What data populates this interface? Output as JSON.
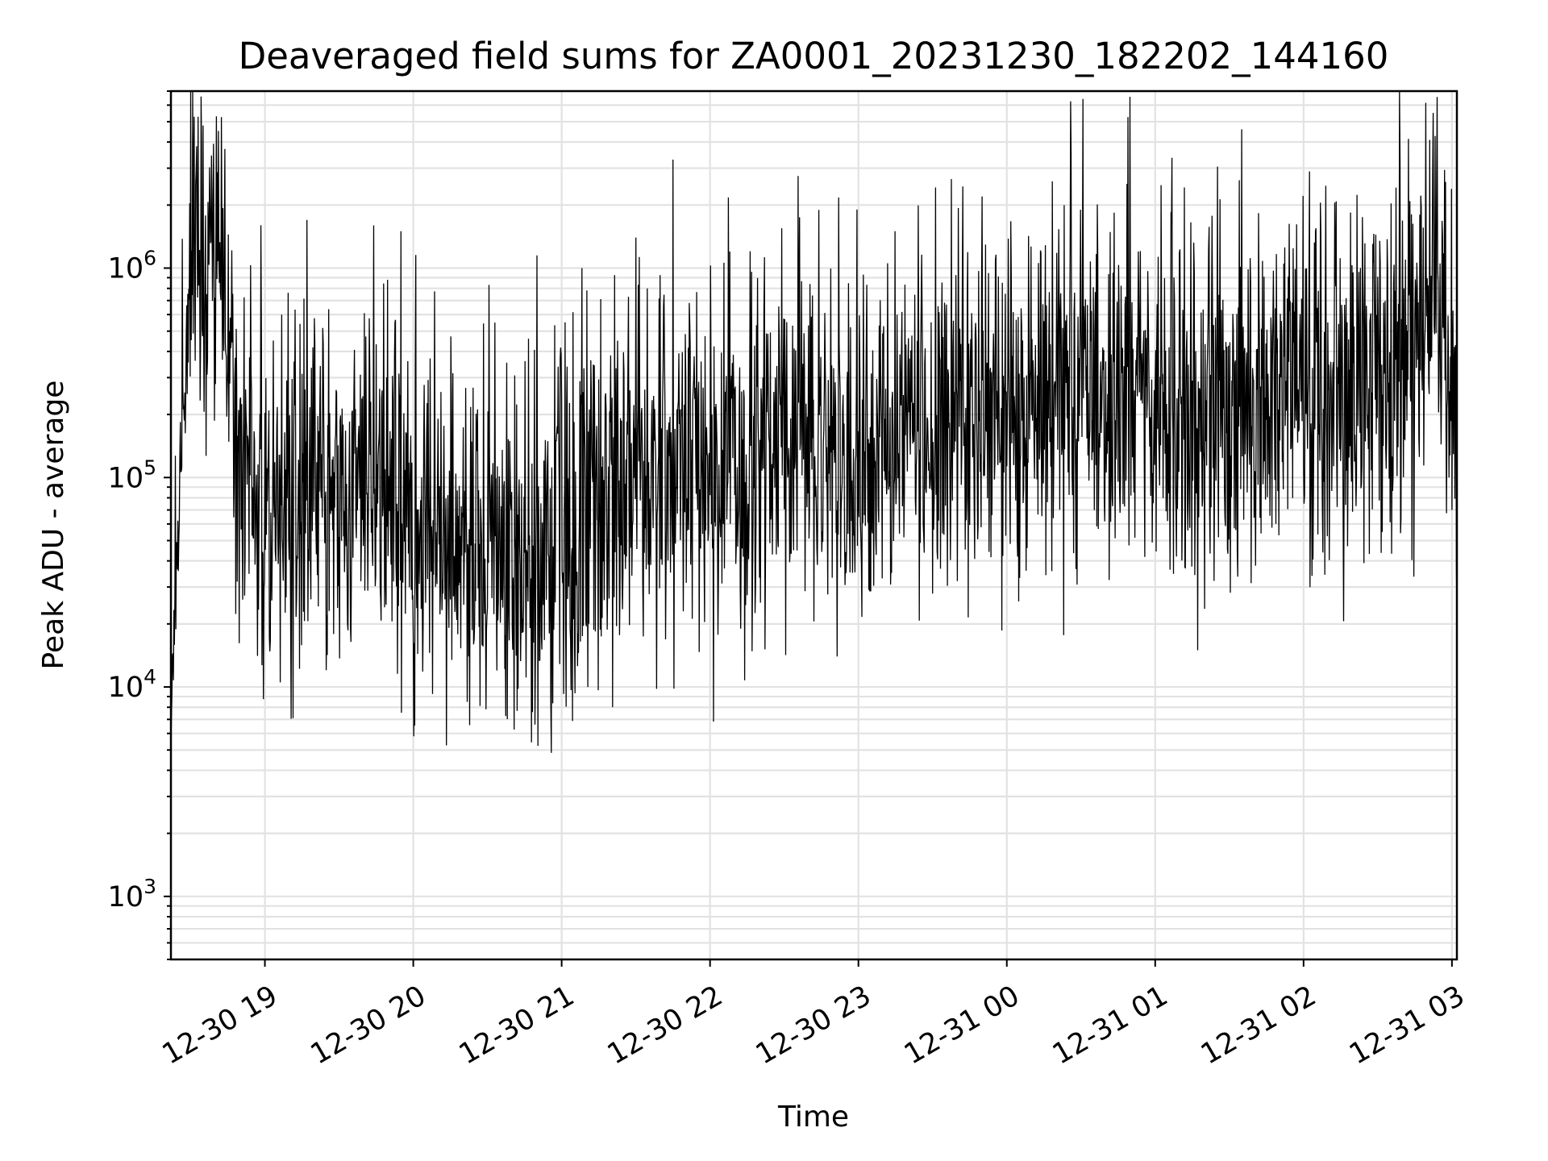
{
  "chart_data": {
    "type": "line",
    "title": "Deaveraged field sums for ZA0001_20231230_182202_144160",
    "xlabel": "Time",
    "ylabel": "Peak ADU - average",
    "yscale": "log",
    "ylim": [
      500,
      7000000
    ],
    "xlim": [
      "2023-12-30 18:22",
      "2023-12-31 03:02"
    ],
    "grid": true,
    "x_ticks": [
      {
        "label": "12-30 19",
        "value": "2023-12-30 19:00"
      },
      {
        "label": "12-30 20",
        "value": "2023-12-30 20:00"
      },
      {
        "label": "12-30 21",
        "value": "2023-12-30 21:00"
      },
      {
        "label": "12-30 22",
        "value": "2023-12-30 22:00"
      },
      {
        "label": "12-30 23",
        "value": "2023-12-30 23:00"
      },
      {
        "label": "12-31 00",
        "value": "2023-12-31 00:00"
      },
      {
        "label": "12-31 01",
        "value": "2023-12-31 01:00"
      },
      {
        "label": "12-31 02",
        "value": "2023-12-31 02:00"
      },
      {
        "label": "12-31 03",
        "value": "2023-12-31 03:00"
      }
    ],
    "y_ticks": [
      {
        "base": "10",
        "exp": "3",
        "value": 1000
      },
      {
        "base": "10",
        "exp": "4",
        "value": 10000
      },
      {
        "base": "10",
        "exp": "5",
        "value": 100000
      },
      {
        "base": "10",
        "exp": "6",
        "value": 1000000
      }
    ],
    "series": [
      {
        "color": "#000000",
        "x": [
          "2023-12-30 18:22",
          "2023-12-30 18:23",
          "2023-12-30 18:25",
          "2023-12-30 18:27",
          "2023-12-30 18:30",
          "2023-12-30 18:33",
          "2023-12-30 18:36",
          "2023-12-30 18:40",
          "2023-12-30 18:45",
          "2023-12-30 18:50",
          "2023-12-30 18:55",
          "2023-12-30 19:00",
          "2023-12-30 19:05",
          "2023-12-30 19:10",
          "2023-12-30 19:15",
          "2023-12-30 19:20",
          "2023-12-30 19:25",
          "2023-12-30 19:30",
          "2023-12-30 19:40",
          "2023-12-30 19:50",
          "2023-12-30 20:00",
          "2023-12-30 20:10",
          "2023-12-30 20:20",
          "2023-12-30 20:30",
          "2023-12-30 20:40",
          "2023-12-30 20:50",
          "2023-12-30 21:00",
          "2023-12-30 21:10",
          "2023-12-30 21:20",
          "2023-12-30 21:30",
          "2023-12-30 21:45",
          "2023-12-30 22:00",
          "2023-12-30 22:15",
          "2023-12-30 22:30",
          "2023-12-30 22:45",
          "2023-12-30 23:00",
          "2023-12-30 23:15",
          "2023-12-30 23:30",
          "2023-12-30 23:45",
          "2023-12-31 00:00",
          "2023-12-31 00:15",
          "2023-12-31 00:30",
          "2023-12-31 00:45",
          "2023-12-31 01:00",
          "2023-12-31 01:15",
          "2023-12-31 01:30",
          "2023-12-31 01:45",
          "2023-12-31 02:00",
          "2023-12-31 02:15",
          "2023-12-31 02:30",
          "2023-12-31 02:40",
          "2023-12-31 02:45",
          "2023-12-31 02:50",
          "2023-12-31 02:55",
          "2023-12-31 03:00",
          "2023-12-31 03:02"
        ],
        "y": [
          6000,
          20000,
          60000,
          250000,
          900000,
          1500000,
          1200000,
          700000,
          400000,
          150000,
          80000,
          60000,
          70000,
          65000,
          85000,
          90000,
          95000,
          100000,
          100000,
          90000,
          50000,
          45000,
          45000,
          45000,
          45000,
          40000,
          55000,
          70000,
          85000,
          90000,
          100000,
          95000,
          110000,
          120000,
          135000,
          140000,
          160000,
          170000,
          185000,
          170000,
          200000,
          210000,
          220000,
          190000,
          210000,
          220000,
          230000,
          220000,
          240000,
          280000,
          320000,
          400000,
          1000000,
          900000,
          250000,
          150000
        ],
        "peaks": [
          {
            "x": "2023-12-30 18:35",
            "y": 4800000
          },
          {
            "x": "2023-12-30 18:32",
            "y": 2500000
          },
          {
            "x": "2023-12-30 19:17",
            "y": 1700000
          },
          {
            "x": "2023-12-30 19:44",
            "y": 1600000
          },
          {
            "x": "2023-12-30 19:55",
            "y": 1500000
          },
          {
            "x": "2023-12-30 20:50",
            "y": 1150000
          },
          {
            "x": "2023-12-30 21:30",
            "y": 1400000
          },
          {
            "x": "2023-12-30 22:08",
            "y": 1200000
          },
          {
            "x": "2023-12-30 23:50",
            "y": 2200000
          },
          {
            "x": "2023-12-31 00:26",
            "y": 3500000
          },
          {
            "x": "2023-12-31 01:35",
            "y": 4600000
          },
          {
            "x": "2023-12-31 02:05",
            "y": 1550000
          },
          {
            "x": "2023-12-31 02:47",
            "y": 1800000
          }
        ],
        "troughs": [
          {
            "x": "2023-12-30 18:22",
            "y": 5500
          },
          {
            "x": "2023-12-30 19:25",
            "y": 22000
          },
          {
            "x": "2023-12-30 20:40",
            "y": 19500
          },
          {
            "x": "2023-12-30 21:10",
            "y": 19500
          },
          {
            "x": "2023-12-30 22:55",
            "y": 35000
          },
          {
            "x": "2023-12-30 23:40",
            "y": 32000
          },
          {
            "x": "2023-12-31 01:50",
            "y": 53000
          },
          {
            "x": "2023-12-31 03:00",
            "y": 70000
          }
        ]
      }
    ]
  }
}
